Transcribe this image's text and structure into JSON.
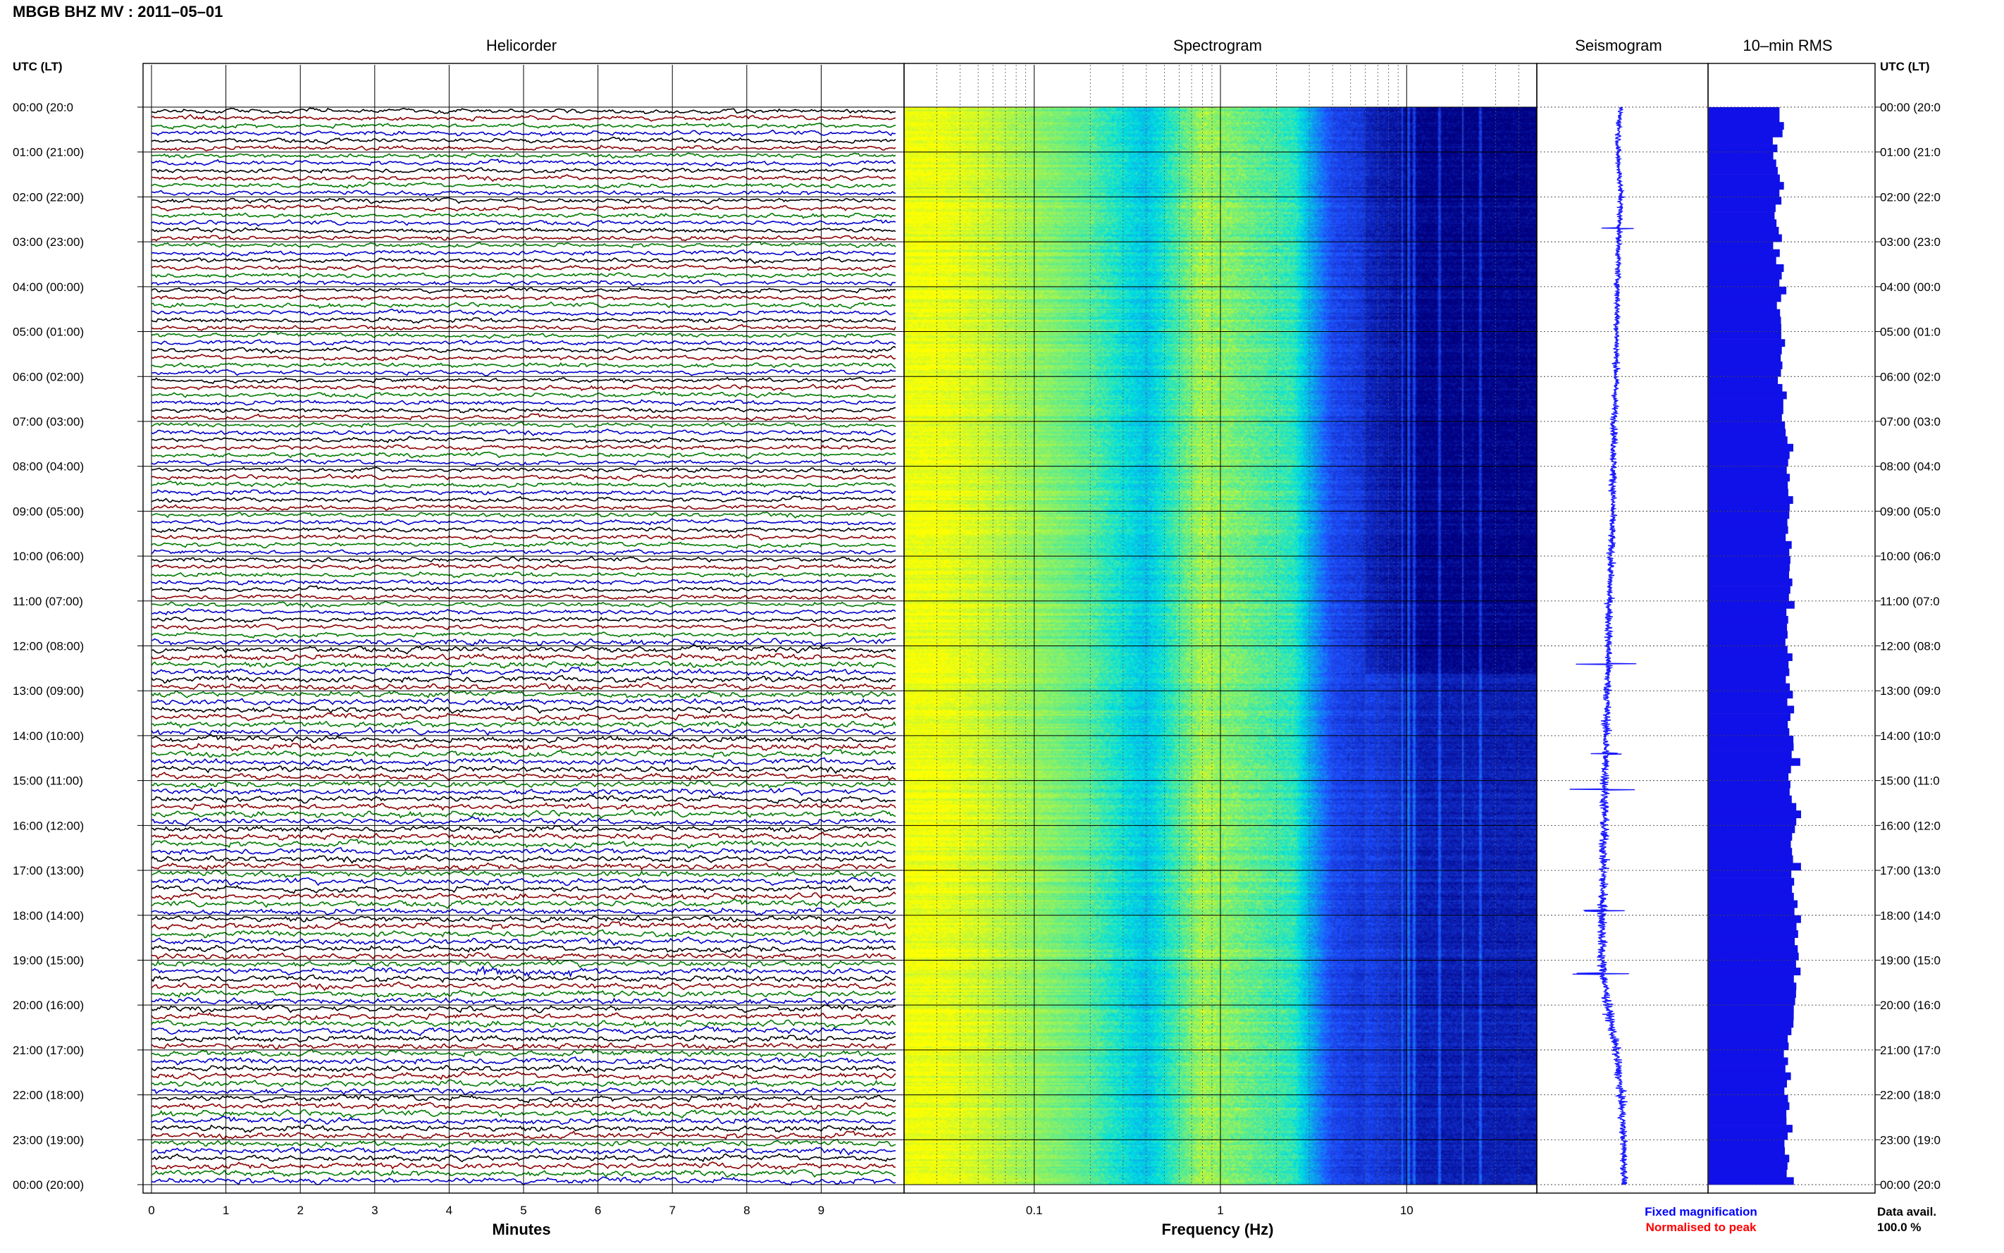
{
  "header": {
    "title": "MBGB BHZ MV : 2011–05–01"
  },
  "colors": {
    "trace_cycle": [
      "#000000",
      "#8b0000",
      "#007a00",
      "#0000cc"
    ],
    "seismogram": "#1a1aff",
    "rms": "#1010e8",
    "legend_fixed": "#0000ff",
    "legend_normalised": "#ff0000"
  },
  "chart_data": [
    {
      "type": "line",
      "panel": "helicorder",
      "title": "Helicorder",
      "xlabel": "Minutes",
      "xlim": [
        0,
        10
      ],
      "x_ticks": [
        "0",
        "1",
        "2",
        "3",
        "4",
        "5",
        "6",
        "7",
        "8",
        "9"
      ],
      "ylabel": "UTC (LT)",
      "y_ticks": [
        "00:00 (20:0",
        "01:00 (21:00)",
        "02:00 (22:00)",
        "03:00 (23:00)",
        "04:00 (00:00)",
        "05:00 (01:00)",
        "06:00 (02:00)",
        "07:00 (03:00)",
        "08:00 (04:00)",
        "09:00 (05:00)",
        "10:00 (06:00)",
        "11:00 (07:00)",
        "12:00 (08:00)",
        "13:00 (09:00)",
        "14:00 (10:00)",
        "15:00 (11:00)",
        "16:00 (12:00)",
        "17:00 (13:00)",
        "18:00 (14:00)",
        "19:00 (15:00)",
        "20:00 (16:00)",
        "21:00 (17:00)",
        "22:00 (18:00)",
        "23:00 (19:00)",
        "00:00 (20:00)"
      ],
      "lines_per_hour": 6,
      "total_lines": 144,
      "grid": true,
      "noisy_line_index": 115
    },
    {
      "type": "heatmap",
      "panel": "spectrogram",
      "title": "Spectrogram",
      "xlabel": "Frequency (Hz)",
      "x_scale": "log",
      "xlim": [
        0.02,
        50
      ],
      "x_ticks": [
        0.1,
        1,
        10
      ],
      "x_tick_labels": [
        "0.1",
        "1",
        "10"
      ],
      "colormap_stops": [
        "#ffff00",
        "#00e0e0",
        "#1e50ff",
        "#000080"
      ],
      "band_edges_hz": [
        0.03,
        0.05,
        0.2,
        0.4,
        0.8,
        2.5,
        4,
        9,
        12
      ],
      "band_levels": [
        0.02,
        0.06,
        0.22,
        0.4,
        0.12,
        0.28,
        0.7,
        0.85,
        0.92
      ],
      "spectral_lines_hz": [
        9.5,
        10.2,
        11.0,
        15.0,
        20.0,
        25.0
      ],
      "quiet_hours": [
        0,
        12.6
      ],
      "grid": true
    },
    {
      "type": "line",
      "panel": "seismogram",
      "title": "Seismogram",
      "hours": [
        0,
        1,
        2,
        3,
        4,
        5,
        6,
        7,
        8,
        9,
        10,
        11,
        12,
        13,
        14,
        15,
        16,
        17,
        18,
        19,
        20,
        21,
        22,
        23,
        24
      ],
      "center_offset": [
        0.2,
        -0.1,
        0.3,
        0.0,
        -0.1,
        -0.2,
        -0.3,
        -0.5,
        -0.6,
        -0.7,
        -0.9,
        -1.1,
        -1.2,
        -1.3,
        -1.5,
        -1.6,
        -1.7,
        -1.8,
        -1.9,
        -2.0,
        -1.3,
        -0.3,
        0.3,
        0.6,
        0.7
      ],
      "amplitude": [
        0.5,
        0.45,
        0.5,
        0.45,
        0.5,
        0.5,
        0.55,
        0.55,
        0.6,
        0.6,
        0.6,
        0.6,
        0.65,
        0.7,
        0.7,
        0.75,
        0.75,
        0.8,
        0.8,
        0.8,
        0.75,
        0.7,
        0.65,
        0.6,
        0.55
      ],
      "spikes": [
        {
          "hour": 2.7,
          "size": 1.2
        },
        {
          "hour": 12.4,
          "size": 2.2
        },
        {
          "hour": 14.4,
          "size": 1.2
        },
        {
          "hour": 15.2,
          "size": 2.4
        },
        {
          "hour": 17.9,
          "size": 1.5
        },
        {
          "hour": 19.3,
          "size": 2.0
        }
      ],
      "legend": [
        "Fixed magnification",
        "Normalised to peak"
      ]
    },
    {
      "type": "bar",
      "panel": "rms",
      "title": "10–min RMS",
      "orientation": "horizontal",
      "xlim": [
        0,
        1
      ],
      "hourly_rms": [
        0.55,
        0.52,
        0.52,
        0.52,
        0.55,
        0.55,
        0.55,
        0.58,
        0.62,
        0.62,
        0.62,
        0.62,
        0.6,
        0.62,
        0.64,
        0.64,
        0.66,
        0.66,
        0.68,
        0.68,
        0.64,
        0.6,
        0.6,
        0.6
      ],
      "ylabel_right": "UTC (LT)",
      "y_ticks_right": [
        "00:00 (20:0",
        "01:00 (21:0",
        "02:00 (22:0",
        "03:00 (23:0",
        "04:00 (00:0",
        "05:00 (01:0",
        "06:00 (02:0",
        "07:00 (03:0",
        "08:00 (04:0",
        "09:00 (05:0",
        "10:00 (06:0",
        "11:00 (07:0",
        "12:00 (08:0",
        "13:00 (09:0",
        "14:00 (10:0",
        "15:00 (11:0",
        "16:00 (12:0",
        "17:00 (13:0",
        "18:00 (14:0",
        "19:00 (15:0",
        "20:00 (16:0",
        "21:00 (17:0",
        "22:00 (18:0",
        "23:00 (19:0",
        "00:00 (20:0"
      ],
      "data_avail_label": "Data avail.",
      "data_avail_value": "100.0 %"
    }
  ]
}
